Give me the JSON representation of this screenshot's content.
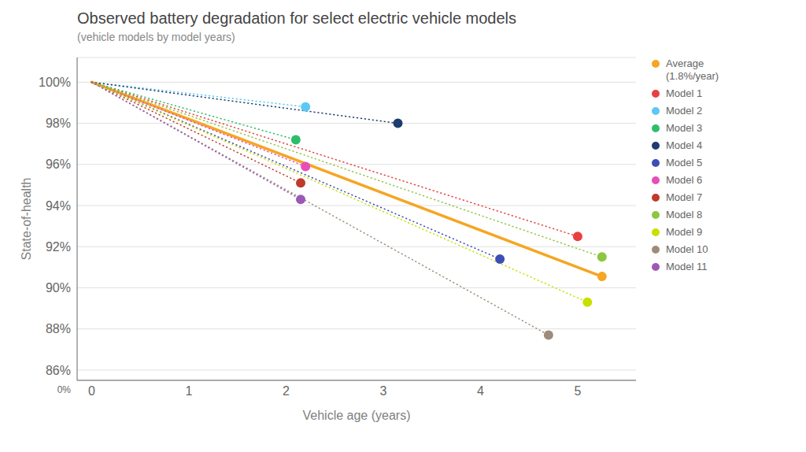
{
  "chart_data": {
    "type": "line",
    "title": "Observed battery degradation for select electric vehicle models",
    "subtitle": "(vehicle models by model years)",
    "xlabel": "Vehicle age (years)",
    "ylabel": "State-of-health",
    "annotations": [
      "0%"
    ],
    "series": [
      {
        "name": "Average\n(1.8%/year)",
        "color": "#f5a623",
        "line_style": "solid",
        "x": [
          0,
          5.25
        ],
        "values": [
          100,
          90.55
        ]
      },
      {
        "name": "Model 1",
        "color": "#e84040",
        "line_style": "dotted",
        "x": [
          0,
          5.0
        ],
        "values": [
          100,
          92.5
        ]
      },
      {
        "name": "Model 2",
        "color": "#5bc8f5",
        "line_style": "dotted",
        "x": [
          0,
          2.2
        ],
        "values": [
          100,
          98.8
        ]
      },
      {
        "name": "Model 3",
        "color": "#2dbe6c",
        "line_style": "dotted",
        "x": [
          0,
          2.1
        ],
        "values": [
          100,
          97.2
        ]
      },
      {
        "name": "Model 4",
        "color": "#1c3d6e",
        "line_style": "dotted",
        "x": [
          0,
          3.15
        ],
        "values": [
          100,
          98.0
        ]
      },
      {
        "name": "Model 5",
        "color": "#3d4eb5",
        "line_style": "dotted",
        "x": [
          0,
          4.2
        ],
        "values": [
          100,
          91.4
        ]
      },
      {
        "name": "Model 6",
        "color": "#e84eb5",
        "line_style": "dotted",
        "x": [
          0,
          2.2
        ],
        "values": [
          100,
          95.9
        ]
      },
      {
        "name": "Model 7",
        "color": "#c0392b",
        "line_style": "dotted",
        "x": [
          0,
          2.15
        ],
        "values": [
          100,
          95.1
        ]
      },
      {
        "name": "Model 8",
        "color": "#8dc63f",
        "line_style": "dotted",
        "x": [
          0,
          5.25
        ],
        "values": [
          100,
          91.5
        ]
      },
      {
        "name": "Model 9",
        "color": "#c8e000",
        "line_style": "dotted",
        "x": [
          0,
          5.1
        ],
        "values": [
          100,
          89.3
        ]
      },
      {
        "name": "Model 10",
        "color": "#9e8c7a",
        "line_style": "dotted",
        "x": [
          0,
          4.7
        ],
        "values": [
          100,
          87.7
        ]
      },
      {
        "name": "Model 11",
        "color": "#9b59b6",
        "line_style": "dotted",
        "x": [
          0,
          2.15
        ],
        "values": [
          100,
          94.3
        ]
      }
    ],
    "xlim": [
      -0.15,
      5.6
    ],
    "xticks": [
      0,
      1,
      2,
      3,
      4,
      5
    ],
    "ylim": [
      85.5,
      101.2
    ],
    "yticks": [
      {
        "value": 86,
        "label": "86%"
      },
      {
        "value": 88,
        "label": "88%"
      },
      {
        "value": 90,
        "label": "90%"
      },
      {
        "value": 92,
        "label": "92%"
      },
      {
        "value": 94,
        "label": "94%"
      },
      {
        "value": 96,
        "label": "96%"
      },
      {
        "value": 98,
        "label": "98%"
      },
      {
        "value": 100,
        "label": "100%"
      }
    ],
    "grid": "y",
    "legend": "right"
  }
}
